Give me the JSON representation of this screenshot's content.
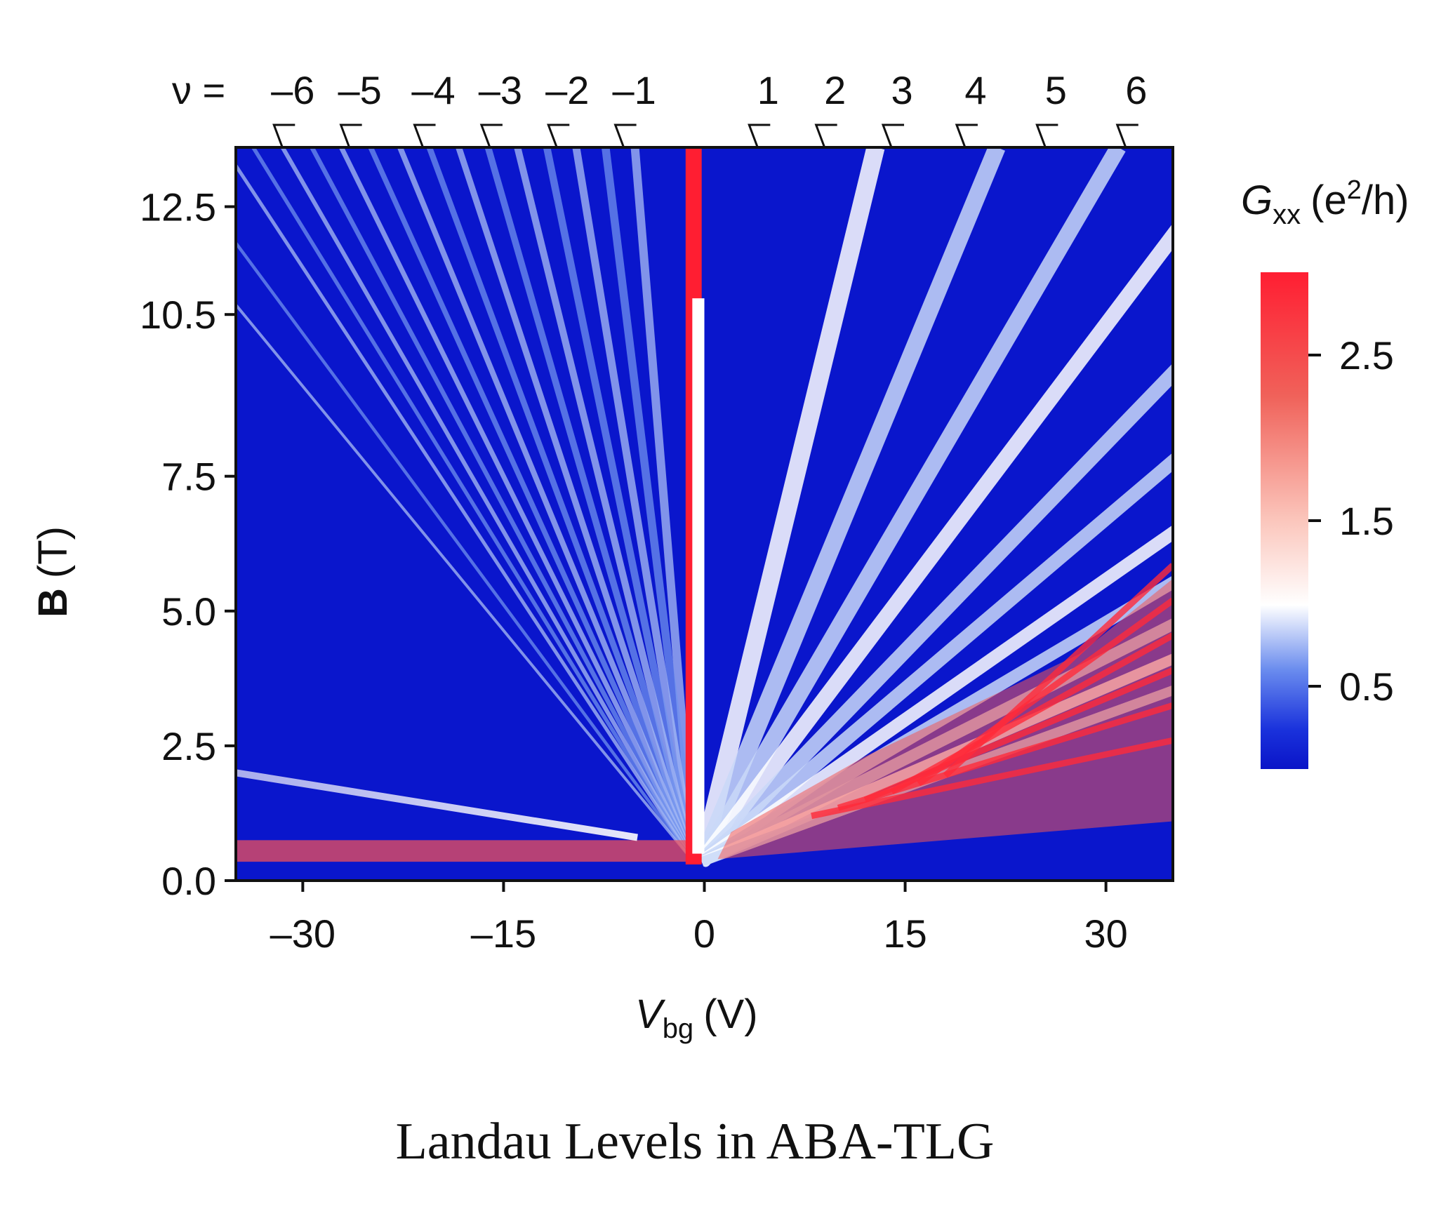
{
  "chart_data": {
    "type": "heatmap",
    "description_caption": "Landau Levels in ABA-TLG",
    "xlabel": {
      "symbol": "V",
      "sub": "bg",
      "unit": "(V)"
    },
    "ylabel": {
      "symbol": "B",
      "unit": "(T)"
    },
    "xlim": [
      -35,
      35
    ],
    "ylim": [
      0,
      13.6
    ],
    "xticks": [
      -30,
      -15,
      0,
      15,
      30
    ],
    "xtick_labels": [
      "–30",
      "–15",
      "0",
      "15",
      "30"
    ],
    "yticks": [
      0.0,
      2.5,
      5.0,
      7.5,
      10.5,
      12.5
    ],
    "ytick_labels": [
      "0.0",
      "2.5",
      "5.0",
      "7.5",
      "10.5",
      "12.5"
    ],
    "top_axis": {
      "prefix": "ν =",
      "labels": [
        "–6",
        "–5",
        "–4",
        "–3",
        "–2",
        "–1",
        "1",
        "2",
        "3",
        "4",
        "5",
        "6"
      ],
      "positions_v": [
        -31,
        -26,
        -20.5,
        -15.5,
        -10.5,
        -5.5,
        4.5,
        9.5,
        14.5,
        20,
        26,
        32
      ]
    },
    "colorbar": {
      "title": {
        "symbol": "G",
        "sub": "xx",
        "unit_prefix": "(e",
        "unit_sup": "2",
        "unit_suffix": "/h)"
      },
      "range": [
        0.0,
        3.0
      ],
      "ticks": [
        0.5,
        1.5,
        2.5
      ],
      "tick_labels": [
        "0.5",
        "1.5",
        "2.5"
      ],
      "colors": [
        "#0a14c8",
        "#3a5ee8",
        "#c8d6f6",
        "#ffffff",
        "#fbd0c8",
        "#f0645a",
        "#ff1e32"
      ]
    },
    "features": {
      "charge_neutrality_v": -0.8,
      "fan_slopes_hole": [
        -2,
        -3,
        -4,
        -5,
        -6,
        -7,
        -8,
        -9,
        -10,
        -11,
        -12,
        -13,
        -14,
        -15,
        -16,
        -18,
        -20
      ],
      "fan_slopes_electron": [
        1.2,
        2,
        2.8,
        3.6,
        4.6,
        5.6,
        6.8,
        8,
        9.4,
        11,
        13
      ]
    }
  },
  "caption": "Landau Levels in ABA-TLG"
}
